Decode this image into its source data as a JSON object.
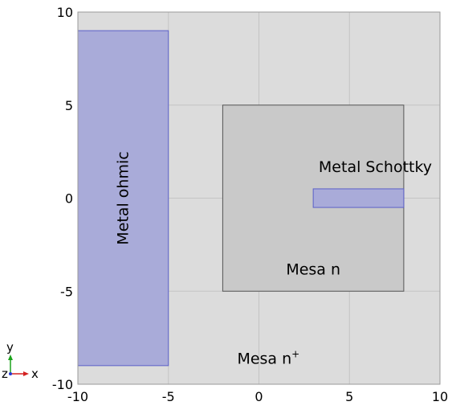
{
  "plot": {
    "xlim": [
      -10,
      10
    ],
    "ylim": [
      -10,
      10
    ],
    "x_ticks": [
      -10,
      -5,
      0,
      5,
      10
    ],
    "y_ticks": [
      -10,
      -5,
      0,
      5,
      10
    ],
    "grid": true,
    "background_color": "#dcdcdc"
  },
  "domains": [
    {
      "id": "metal-ohmic",
      "label": "Metal ohmic",
      "x": [
        -10,
        -5
      ],
      "y": [
        -9,
        9
      ],
      "fill": "#a9abd9",
      "stroke": "#5b60c8",
      "label_at": [
        -7.5,
        0
      ],
      "label_rotation": -90
    },
    {
      "id": "mesa-n",
      "label": "Mesa n",
      "x": [
        -2,
        8
      ],
      "y": [
        -5,
        5
      ],
      "fill": "#c9c9c9",
      "stroke": "#555555",
      "label_at": [
        1.5,
        -4.1
      ],
      "label_rotation": 0
    },
    {
      "id": "metal-schottky",
      "label": "Metal Schottky",
      "x": [
        3,
        8
      ],
      "y": [
        -0.5,
        0.5
      ],
      "fill": "#a9abd9",
      "stroke": "#5b60c8",
      "label_at": [
        3.3,
        1.4
      ],
      "label_rotation": 0
    }
  ],
  "annotations": [
    {
      "id": "mesa-n-plus",
      "text": "Mesa n",
      "sup": "+",
      "at": [
        -1.2,
        -8.9
      ]
    }
  ],
  "axis_triad": {
    "x_label": "x",
    "y_label": "y",
    "z_label": "z"
  }
}
